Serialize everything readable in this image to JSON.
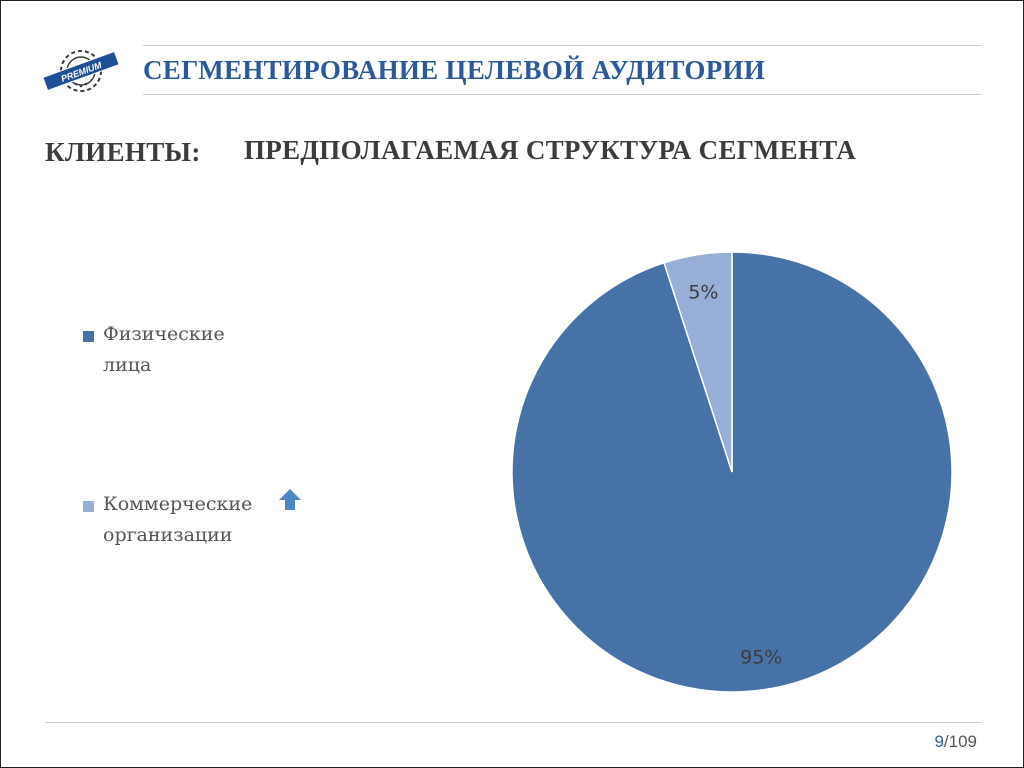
{
  "header": {
    "title": "СЕГМЕНТИРОВАНИЕ ЦЕЛЕВОЙ АУДИТОРИИ",
    "logo_text": "PREMIUM",
    "title_color": "#2b5a9c"
  },
  "content": {
    "section_label": "КЛИЕНТЫ:",
    "subtitle": "ПРЕДПОЛАГАЕМАЯ СТРУКТУРА СЕГМЕНТА"
  },
  "legend": {
    "items": [
      {
        "label": "Физические лица",
        "color": "#4672a8"
      },
      {
        "label": "Коммерческие организации",
        "color": "#97aed6"
      }
    ],
    "arrow_icon": "arrow-up-icon",
    "arrow_color": "#4a86c8"
  },
  "chart_data": {
    "type": "pie",
    "title": "",
    "slices": [
      {
        "name": "Физические лица",
        "value": 95,
        "label": "95%",
        "color": "#4672a8"
      },
      {
        "name": "Коммерческие организации",
        "value": 5,
        "label": "5%",
        "color": "#97aed6"
      }
    ],
    "legend_position": "left"
  },
  "footer": {
    "page_current": "9",
    "page_total": "/109"
  }
}
